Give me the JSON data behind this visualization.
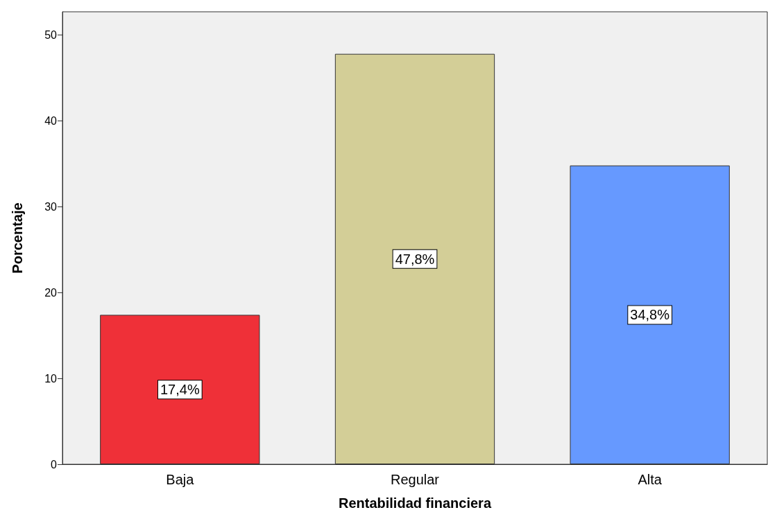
{
  "chart_data": {
    "type": "bar",
    "xlabel": "Rentabilidad financiera",
    "ylabel": "Porcentaje",
    "categories": [
      "Baja",
      "Regular",
      "Alta"
    ],
    "values": [
      17.4,
      47.8,
      34.8
    ],
    "colors": [
      "#ef3038",
      "#d3ce97",
      "#6699ff"
    ],
    "value_labels": [
      "17,4%",
      "47,8%",
      "34,8%"
    ],
    "ylim": [
      0,
      52.7
    ],
    "yticks": [
      0,
      10,
      20,
      30,
      40,
      50
    ],
    "grid": false
  }
}
